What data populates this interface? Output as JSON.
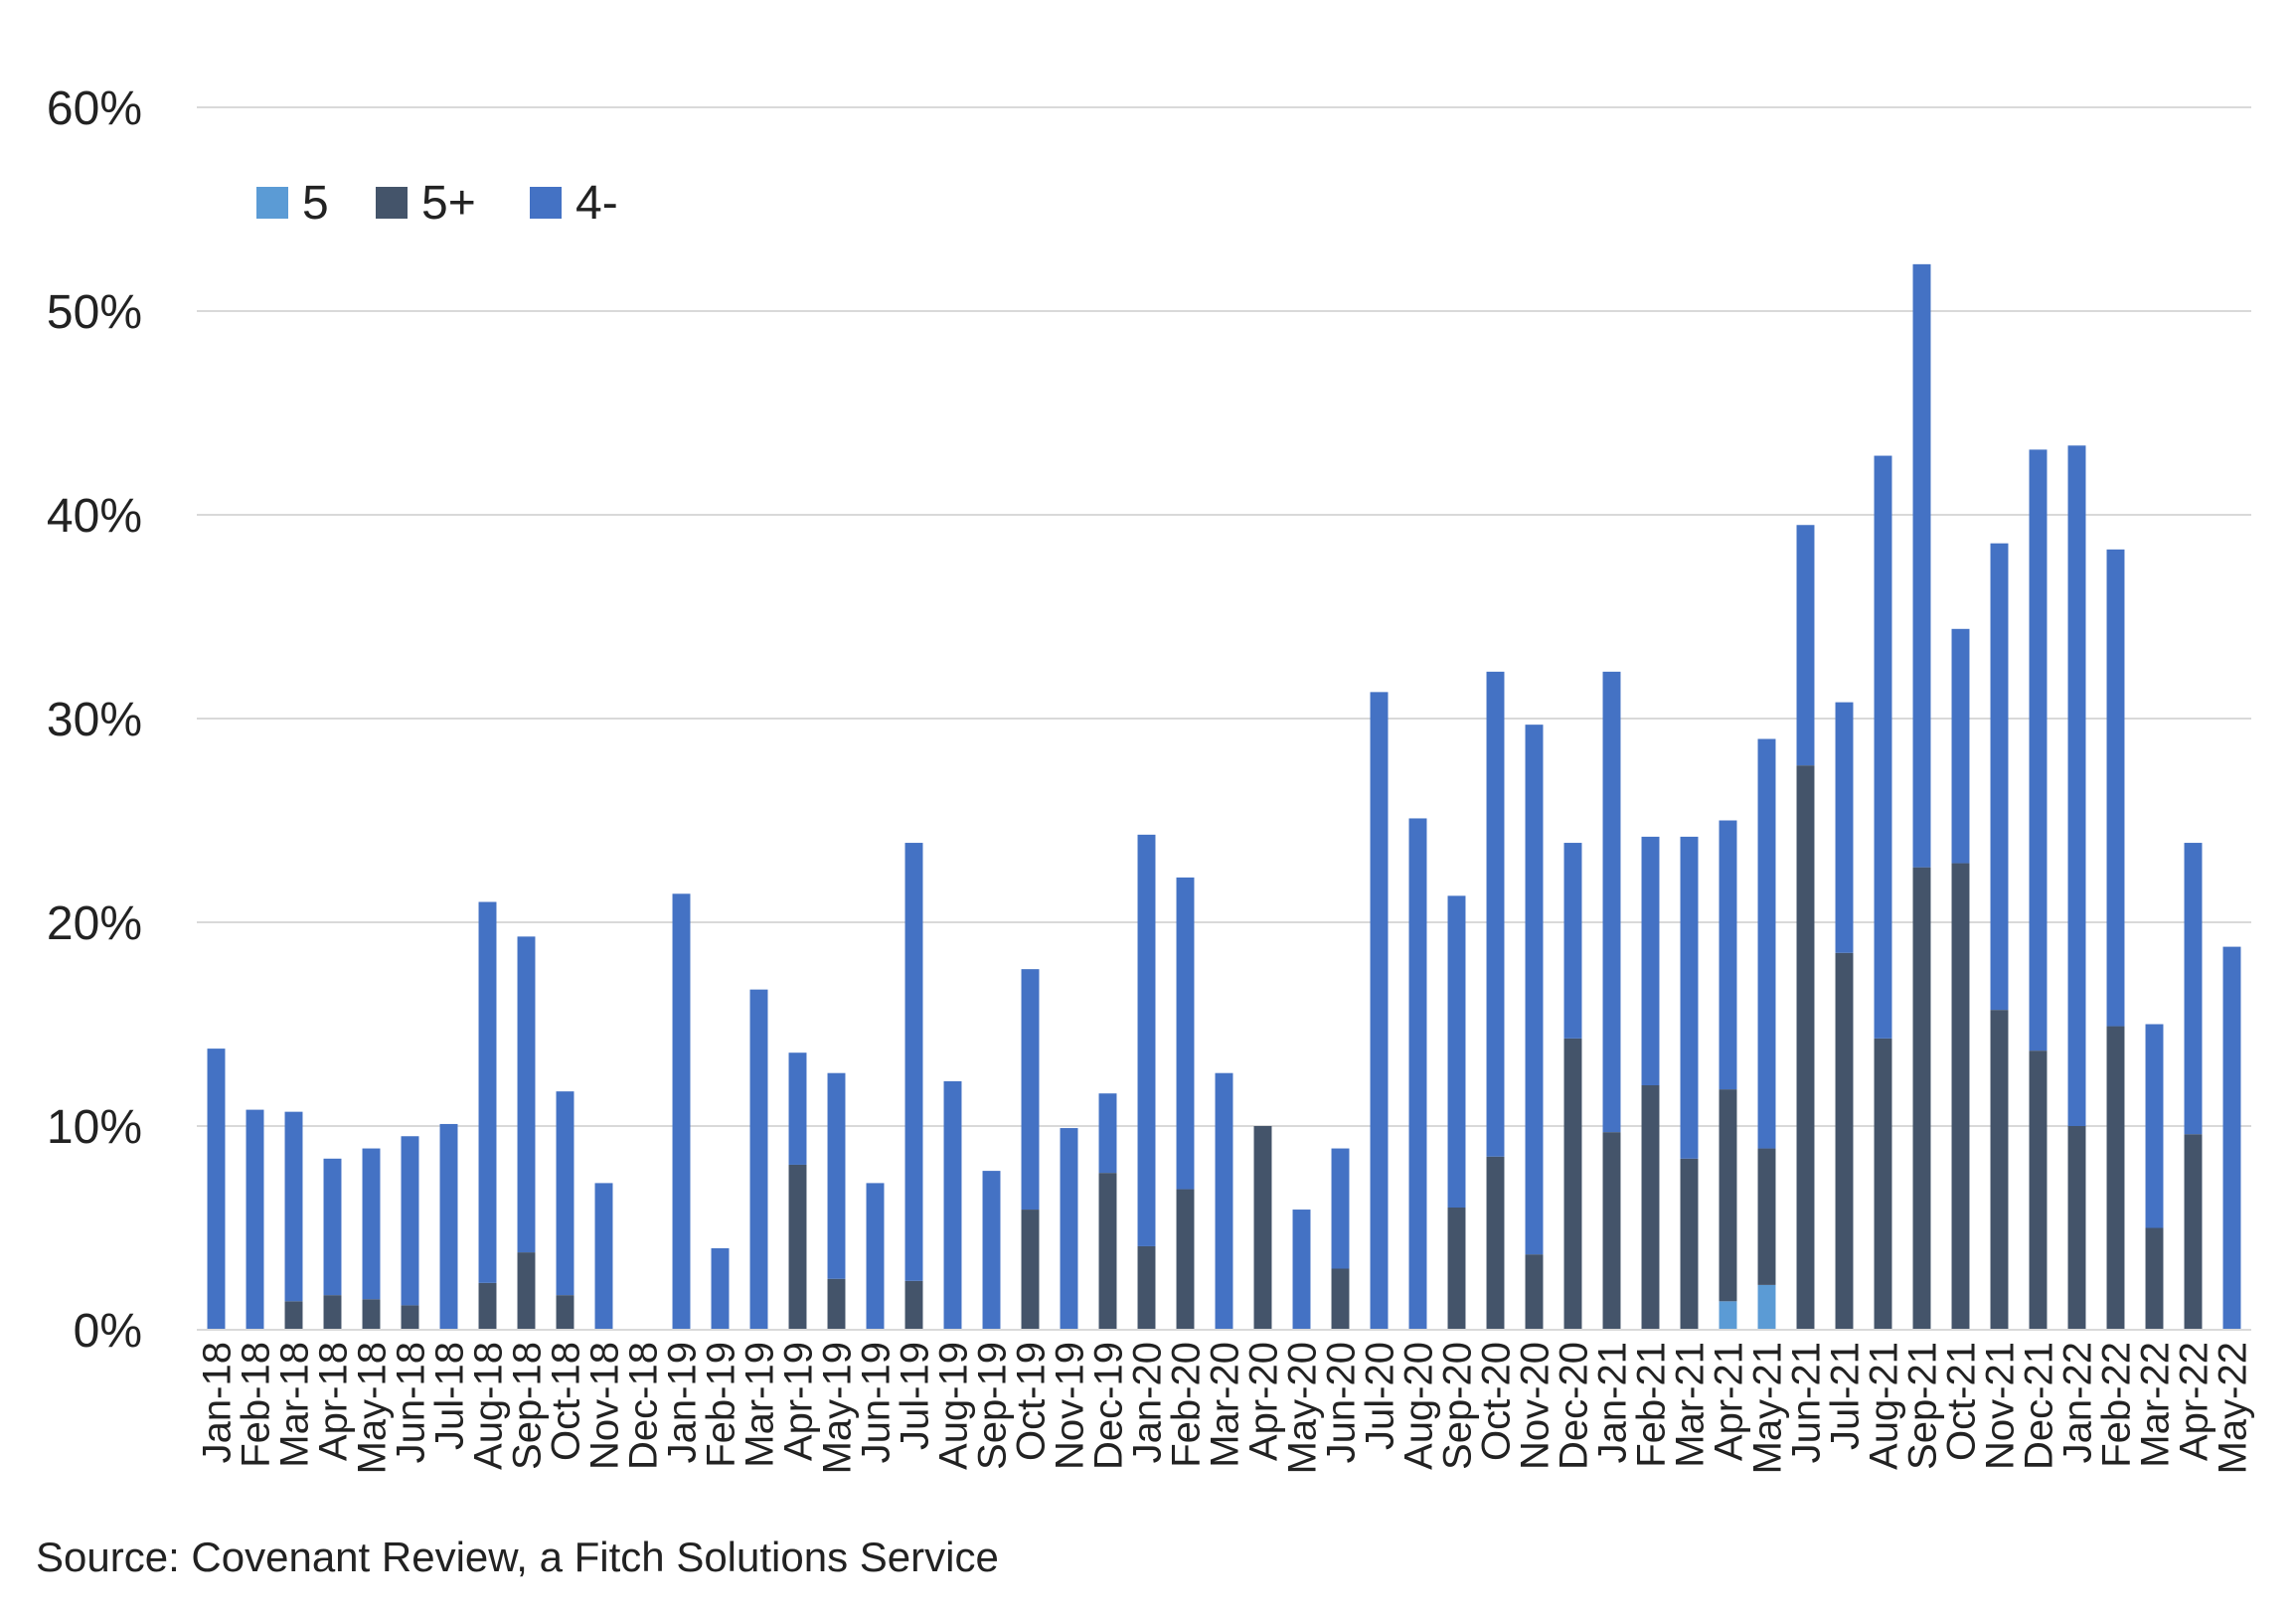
{
  "source": "Source: Covenant Review, a Fitch Solutions Service",
  "chart_data": {
    "type": "bar",
    "stacked": true,
    "title": "",
    "xlabel": "",
    "ylabel": "",
    "ylim": [
      0,
      60
    ],
    "yticks": [
      "0%",
      "10%",
      "20%",
      "30%",
      "40%",
      "50%",
      "60%"
    ],
    "grid": true,
    "legend": "top-left",
    "categories": [
      "Jan-18",
      "Feb-18",
      "Mar-18",
      "Apr-18",
      "May-18",
      "Jun-18",
      "Jul-18",
      "Aug-18",
      "Sep-18",
      "Oct-18",
      "Nov-18",
      "Dec-18",
      "Jan-19",
      "Feb-19",
      "Mar-19",
      "Apr-19",
      "May-19",
      "Jun-19",
      "Jul-19",
      "Aug-19",
      "Sep-19",
      "Oct-19",
      "Nov-19",
      "Dec-19",
      "Jan-20",
      "Feb-20",
      "Mar-20",
      "Apr-20",
      "May-20",
      "Jun-20",
      "Jul-20",
      "Aug-20",
      "Sep-20",
      "Oct-20",
      "Nov-20",
      "Dec-20",
      "Jan-21",
      "Feb-21",
      "Mar-21",
      "Apr-21",
      "May-21",
      "Jun-21",
      "Jul-21",
      "Aug-21",
      "Sep-21",
      "Oct-21",
      "Nov-21",
      "Dec-21",
      "Jan-22",
      "Feb-22",
      "Mar-22",
      "Apr-22",
      "May-22"
    ],
    "series": [
      {
        "name": "5",
        "color": "#5b9bd5",
        "values": [
          0,
          0,
          0,
          0,
          0,
          0,
          0,
          0,
          0,
          0,
          0,
          0,
          0,
          0,
          0,
          0,
          0,
          0,
          0,
          0,
          0,
          0,
          0,
          0,
          0,
          0,
          0,
          0,
          0,
          0,
          0,
          0,
          0,
          0,
          0,
          0,
          0,
          0,
          0,
          1.4,
          2.2,
          0,
          0,
          0,
          0,
          0,
          0,
          0,
          0,
          0,
          0,
          0,
          0
        ]
      },
      {
        "name": "5+",
        "color": "#44546a",
        "values": [
          0,
          0,
          1.4,
          1.7,
          1.5,
          1.2,
          0,
          2.3,
          3.8,
          1.7,
          0,
          0,
          0,
          0,
          0,
          8.1,
          2.5,
          0,
          2.4,
          0,
          0,
          5.9,
          0,
          7.7,
          4.1,
          6.9,
          0,
          10.0,
          0,
          3.0,
          0,
          0,
          6.0,
          8.5,
          3.7,
          14.3,
          9.7,
          12.0,
          8.4,
          10.4,
          6.7,
          27.7,
          18.5,
          14.3,
          22.7,
          22.9,
          15.7,
          13.7,
          10.0,
          14.9,
          5.0,
          9.6,
          0
        ]
      },
      {
        "name": "4-",
        "color": "#4472c4",
        "values": [
          13.8,
          10.8,
          9.3,
          6.7,
          7.4,
          8.3,
          10.1,
          18.7,
          15.5,
          10.0,
          7.2,
          0,
          21.4,
          4.0,
          16.7,
          5.5,
          10.1,
          7.2,
          21.5,
          12.2,
          7.8,
          11.8,
          9.9,
          3.9,
          20.2,
          15.3,
          12.6,
          0,
          5.9,
          5.9,
          31.3,
          25.1,
          15.3,
          23.8,
          26.0,
          9.6,
          22.6,
          12.2,
          15.8,
          13.2,
          20.1,
          11.8,
          12.3,
          28.6,
          29.6,
          11.5,
          22.9,
          29.5,
          33.4,
          23.4,
          10.0,
          14.3,
          18.8
        ]
      }
    ]
  }
}
